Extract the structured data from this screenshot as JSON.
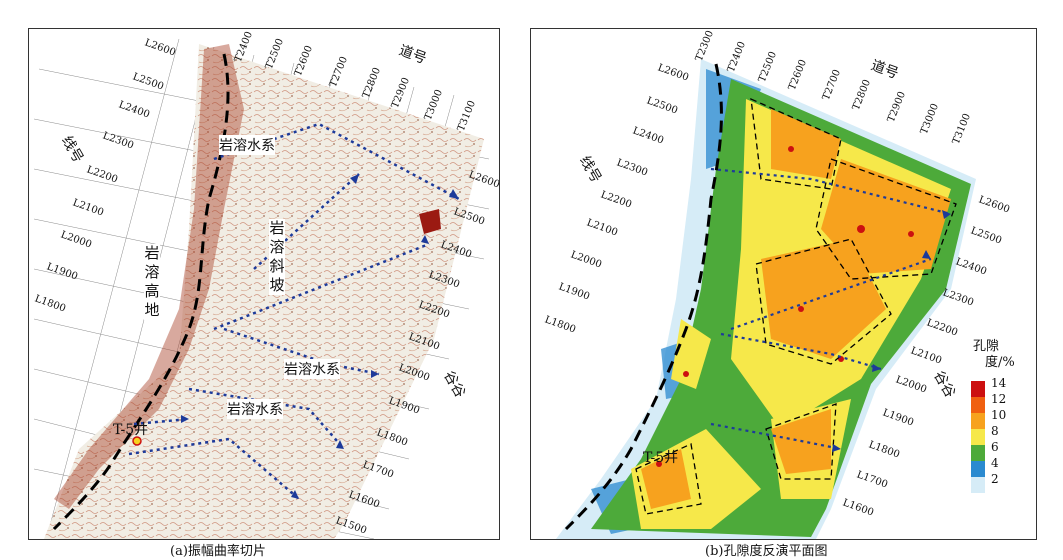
{
  "panel_a": {
    "caption": "(a)振幅曲率切片",
    "trace_axis_label": "道号",
    "line_axis_label": "线号",
    "valley_label": "谷谷",
    "trace_ticks": [
      "T2400",
      "T2500",
      "T2600",
      "T2700",
      "T2800",
      "T2900",
      "T3000",
      "T3100"
    ],
    "left_line_ticks": [
      "L2600",
      "L2500",
      "L2400",
      "L2300",
      "L2200",
      "L2100",
      "L2000",
      "L1900",
      "L1800"
    ],
    "right_line_ticks": [
      "L2600",
      "L2500",
      "L2400",
      "L2300",
      "L2200",
      "L2100",
      "L2000",
      "L1900",
      "L1800",
      "L1700",
      "L1600",
      "L1500"
    ],
    "karst_highland": "岩溶高地",
    "karst_slope": "岩溶斜坡",
    "water_system_1": "岩溶水系",
    "water_system_2": "岩溶水系",
    "water_system_3": "岩溶水系",
    "well": "T-5井"
  },
  "panel_b": {
    "caption": "(b)孔隙度反演平面图",
    "trace_axis_label": "道号",
    "line_axis_label": "线号",
    "valley_label": "谷谷",
    "trace_ticks": [
      "T2300",
      "T2400",
      "T2500",
      "T2600",
      "T2700",
      "T2800",
      "T2900",
      "T3000",
      "T3100"
    ],
    "left_line_ticks": [
      "L2600",
      "L2500",
      "L2400",
      "L2300",
      "L2200",
      "L2100",
      "L2000",
      "L1900",
      "L1800"
    ],
    "right_line_ticks": [
      "L2600",
      "L2500",
      "L2400",
      "L2300",
      "L2200",
      "L2100",
      "L2000",
      "L1900",
      "L1800",
      "L1700",
      "L1600"
    ],
    "well": "T-5井",
    "legend": {
      "title_line1": "孔隙",
      "title_line2": "度/%",
      "ticks": [
        "14",
        "12",
        "10",
        "8",
        "6",
        "4",
        "2"
      ],
      "colors": [
        "#cc1010",
        "#f06010",
        "#f7a21e",
        "#f6e84a",
        "#4daa3a",
        "#2a8ad0",
        "#d6ecf7"
      ]
    }
  }
}
